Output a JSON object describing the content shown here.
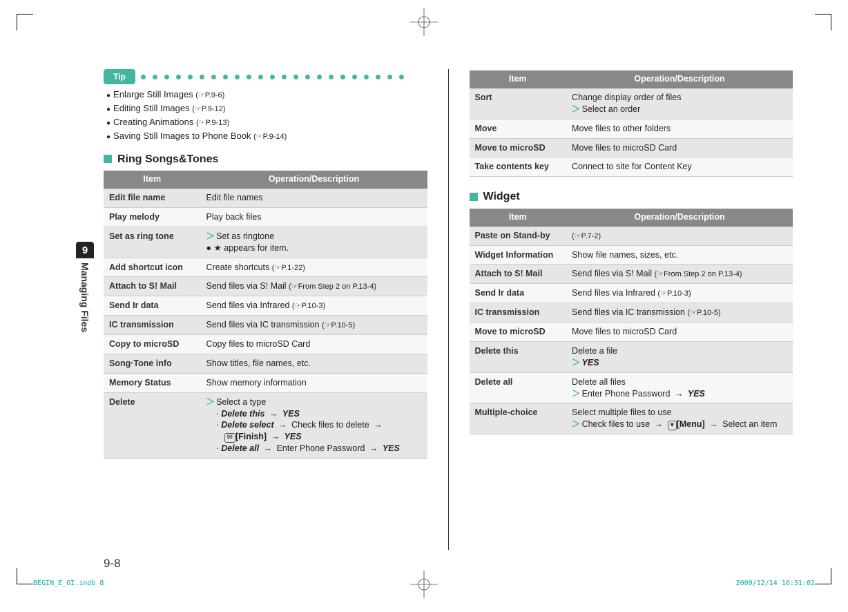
{
  "tip_label": "Tip",
  "tips": [
    {
      "text": "Enlarge Still Images",
      "ref": "(☞P.9-6)"
    },
    {
      "text": "Editing Still Images",
      "ref": "(☞P.9-12)"
    },
    {
      "text": "Creating Animations",
      "ref": "(☞P.9-13)"
    },
    {
      "text": "Saving Still Images to Phone Book",
      "ref": "(☞P.9-14)"
    }
  ],
  "sections": {
    "ring": {
      "title": "Ring Songs&Tones",
      "head_item": "Item",
      "head_op": "Operation/Description",
      "rows": [
        {
          "item": "Edit file name",
          "op_text": "Edit file names"
        },
        {
          "item": "Play melody",
          "op_text": "Play back files"
        },
        {
          "item": "Set as ring tone",
          "op_html": "<span class='arrow'>＞</span>Set as ringtone<br>● ★ appears for item."
        },
        {
          "item": "Add shortcut icon",
          "op_html": "Create shortcuts <span class='ptr'>(☞P.1-22)</span>"
        },
        {
          "item": "Attach to S! Mail",
          "op_html": "Send files via S! Mail <span class='ptr'>(☞From Step 2 on P.13-4)</span>"
        },
        {
          "item": "Send Ir data",
          "op_html": "Send files via Infrared <span class='ptr'>(☞P.10-3)</span>"
        },
        {
          "item": "IC transmission",
          "op_html": "Send files via IC transmission <span class='ptr'>(☞P.10-5)</span>"
        },
        {
          "item": "Copy to microSD",
          "op_text": "Copy files to microSD Card"
        },
        {
          "item": "Song·Tone info",
          "op_text": "Show titles, file names, etc."
        },
        {
          "item": "Memory Status",
          "op_text": "Show memory information"
        },
        {
          "item": "Delete",
          "op_html": "<span class='arrow'>＞</span>Select a type<br><span class='sub'>· <span class='biem'>Delete this</span> <span class='to'>→</span> <span class='biem'>YES</span></span><br><span class='sub'>· <span class='biem'>Delete select</span> <span class='to'>→</span> Check files to delete <span class='to'>→</span></span><br><span class='sub' style='margin-left:26px'><span class='key'>✉</span><b>[Finish]</b> <span class='to'>→</span> <span class='biem'>YES</span></span><br><span class='sub'>· <span class='biem'>Delete all</span> <span class='to'>→</span> Enter Phone Password <span class='to'>→</span> <span class='biem'>YES</span></span>"
        }
      ]
    },
    "r2": {
      "head_item": "Item",
      "head_op": "Operation/Description",
      "rows": [
        {
          "item": "Sort",
          "op_html": "Change display order of files<br><span class='arrow'>＞</span>Select an order"
        },
        {
          "item": "Move",
          "op_text": "Move files to other folders"
        },
        {
          "item": "Move to microSD",
          "op_text": "Move files to microSD Card"
        },
        {
          "item": "Take contents key",
          "op_text": "Connect to site for Content Key"
        }
      ]
    },
    "widget": {
      "title": "Widget",
      "head_item": "Item",
      "head_op": "Operation/Description",
      "rows": [
        {
          "item": "Paste on Stand-by",
          "op_html": "<span class='ptr'>(☞P.7-2)</span>"
        },
        {
          "item": "Widget Information",
          "op_text": "Show file names, sizes, etc."
        },
        {
          "item": "Attach to S! Mail",
          "op_html": "Send files via S! Mail <span class='ptr'>(☞From Step 2 on P.13-4)</span>"
        },
        {
          "item": "Send Ir data",
          "op_html": "Send files via Infrared <span class='ptr'>(☞P.10-3)</span>"
        },
        {
          "item": "IC transmission",
          "op_html": "Send files via IC transmission <span class='ptr'>(☞P.10-5)</span>"
        },
        {
          "item": "Move to microSD",
          "op_text": "Move files to microSD Card"
        },
        {
          "item": "Delete this",
          "op_html": "Delete a file<br><span class='arrow'>＞</span><span class='biem'>YES</span>"
        },
        {
          "item": "Delete all",
          "op_html": "Delete all files<br><span class='arrow'>＞</span>Enter Phone Password <span class='to'>→</span> <span class='biem'>YES</span>"
        },
        {
          "item": "Multiple-choice",
          "op_html": "Select multiple files to use<br><span class='arrow'>＞</span>Check files to use <span class='to'>→</span> <span class='key'>▾</span><b>[Menu]</b> <span class='to'>→</span> Select an item"
        }
      ]
    }
  },
  "side": {
    "num": "9",
    "label": "Managing Files"
  },
  "page_num": "9-8",
  "footer_left": "BEGIN_E_OI.indb   8",
  "footer_right": "2009/12/14   16:31:02"
}
